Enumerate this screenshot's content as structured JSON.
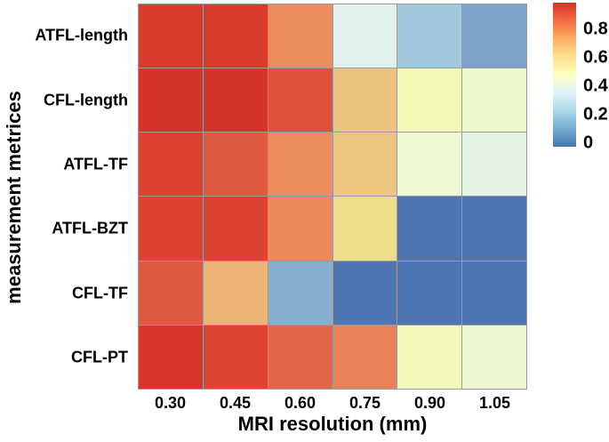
{
  "chart_data": {
    "type": "heatmap",
    "title": "",
    "xlabel": "MRI resolution (mm)",
    "ylabel": "measurement metrices",
    "x_categories": [
      "0.30",
      "0.45",
      "0.60",
      "0.75",
      "0.90",
      "1.05"
    ],
    "y_categories": [
      "ATFL-length",
      "CFL-length",
      "ATFL-TF",
      "ATFL-BZT",
      "CFL-TF",
      "CFL-PT"
    ],
    "grid_line_color": "#9b9b9b",
    "colormap": "RdYlBu-reversed (blue = low, red = high)",
    "cell_colors": [
      [
        "#d93a2e",
        "#d93a2e",
        "#ec8c5c",
        "#e1f2ee",
        "#a1c7de",
        "#7ba3c9"
      ],
      [
        "#d5342b",
        "#d5342b",
        "#de5038",
        "#ecc47d",
        "#f2f8b6",
        "#eef8cf"
      ],
      [
        "#dc4335",
        "#e05a41",
        "#ec8d5e",
        "#ecc57e",
        "#eef8d4",
        "#e4f5e4"
      ],
      [
        "#dc4335",
        "#dc4335",
        "#ec8a5c",
        "#eedd8b",
        "#4f76b4",
        "#4f76b4"
      ],
      [
        "#e05a42",
        "#ecb576",
        "#85aed0",
        "#4f76b4",
        "#4f76b4",
        "#4f76b4"
      ],
      [
        "#d8362d",
        "#dc4434",
        "#e4664a",
        "#ea8157",
        "#f3f9ba",
        "#edf8d0"
      ]
    ],
    "estimated_values": [
      [
        0.95,
        0.95,
        0.79,
        0.36,
        0.19,
        0.1
      ],
      [
        0.97,
        0.97,
        0.9,
        0.64,
        0.47,
        0.43
      ],
      [
        0.92,
        0.88,
        0.78,
        0.63,
        0.42,
        0.39
      ],
      [
        0.92,
        0.92,
        0.78,
        0.56,
        0.01,
        0.01
      ],
      [
        0.88,
        0.66,
        0.15,
        0.01,
        0.01,
        0.01
      ],
      [
        0.96,
        0.92,
        0.85,
        0.79,
        0.46,
        0.42
      ]
    ],
    "colorbar": {
      "ticks": [
        "0.8",
        "0.6",
        "0.4",
        "0.2",
        "0"
      ],
      "tick_fractions_from_top": [
        0.186,
        0.383,
        0.58,
        0.777,
        0.973
      ],
      "gradient_stops_top_to_bottom": [
        "#d73027",
        "#f46d43",
        "#fdae61",
        "#fee090",
        "#ffffbf",
        "#e0f3f8",
        "#abd9e9",
        "#74add1",
        "#4575b4"
      ],
      "legend_position": "right"
    },
    "axis_ranges": {
      "value_min": 0,
      "value_max": 0.98,
      "grid": "cell borders only"
    }
  }
}
